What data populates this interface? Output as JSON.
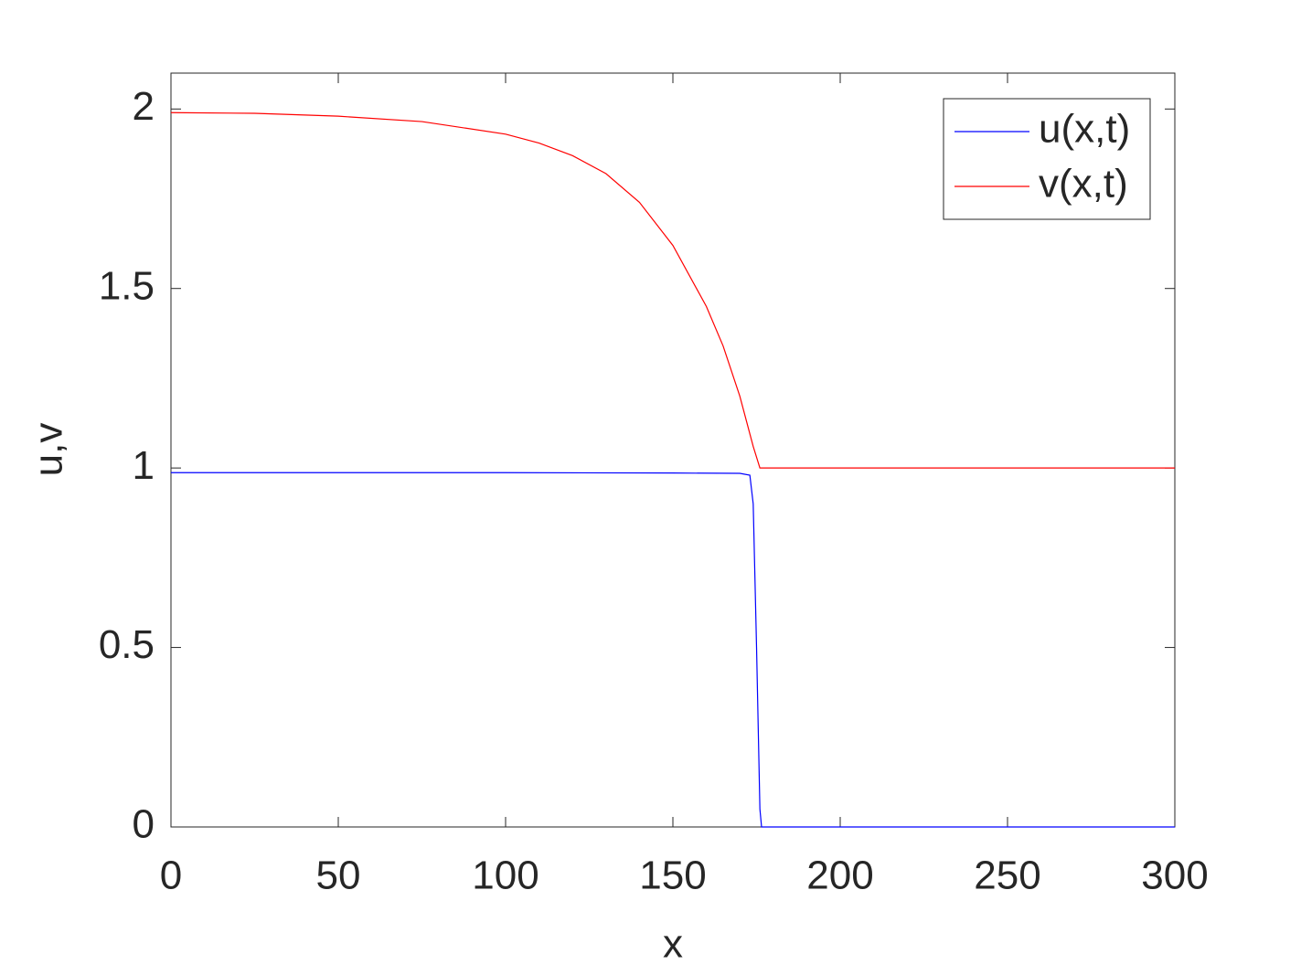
{
  "chart_data": {
    "type": "line",
    "x_label": "x",
    "y_label": "u,v",
    "series": [
      {
        "name": "u(x,t)",
        "color": "#0000ff",
        "x": [
          0,
          50,
          100,
          150,
          170,
          173,
          174,
          175,
          176,
          176.5,
          200,
          250,
          300
        ],
        "values": [
          0.987,
          0.987,
          0.987,
          0.986,
          0.985,
          0.98,
          0.9,
          0.5,
          0.05,
          0,
          0,
          0,
          0
        ]
      },
      {
        "name": "v(x,t)",
        "color": "#ff0000",
        "x": [
          0,
          25,
          50,
          75,
          100,
          110,
          120,
          130,
          140,
          150,
          160,
          165,
          170,
          174,
          176,
          200,
          250,
          300
        ],
        "values": [
          1.99,
          1.988,
          1.98,
          1.965,
          1.93,
          1.905,
          1.87,
          1.82,
          1.74,
          1.62,
          1.45,
          1.34,
          1.2,
          1.06,
          1.0,
          1.0,
          1.0,
          1.0
        ]
      }
    ],
    "xlim": [
      0,
      300
    ],
    "xticks": [
      0,
      50,
      100,
      150,
      200,
      250,
      300
    ],
    "ylim": [
      0,
      2.1
    ],
    "yticks": [
      0,
      0.5,
      1,
      1.5,
      2
    ],
    "grid": false,
    "legend": "upper right"
  }
}
